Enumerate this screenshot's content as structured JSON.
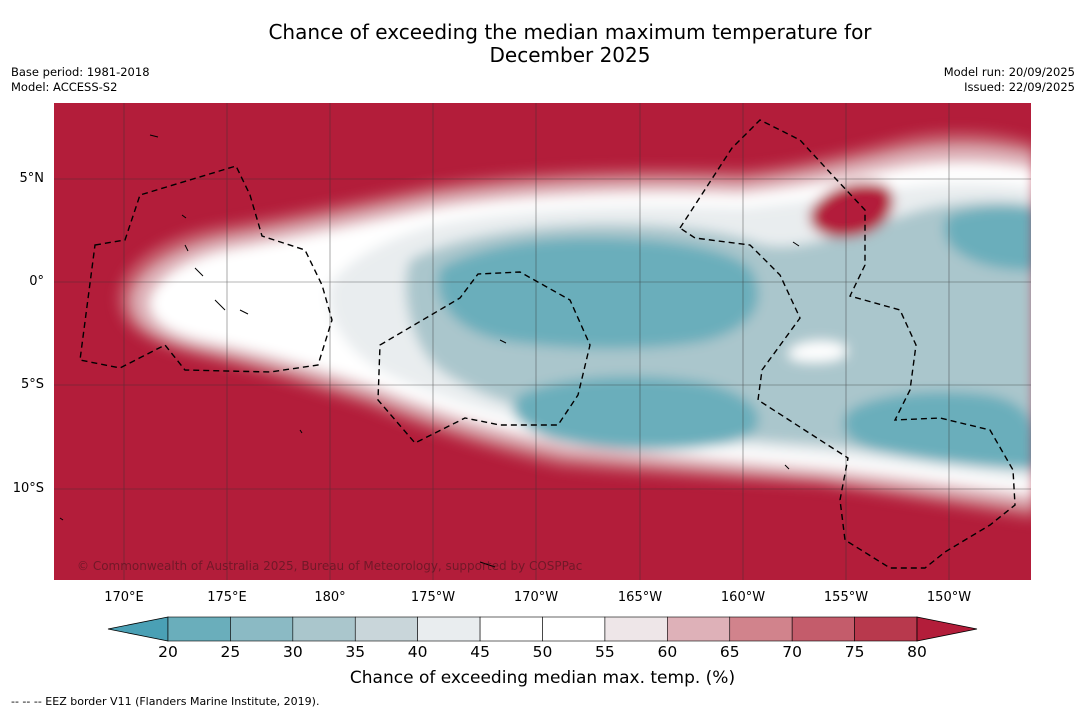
{
  "title": {
    "line1": "Chance of exceeding the median maximum temperature for",
    "line2": "December 2025"
  },
  "meta_left": {
    "base_period": "Base period: 1981-2018",
    "model": "Model: ACCESS-S2"
  },
  "meta_right": {
    "model_run": "Model run: 20/09/2025",
    "issued": "Issued: 22/09/2025"
  },
  "map": {
    "lat_labels": [
      "5°N",
      "0°",
      "5°S",
      "10°S"
    ],
    "lon_labels": [
      "170°E",
      "175°E",
      "180°",
      "175°W",
      "170°W",
      "165°W",
      "160°W",
      "155°W",
      "150°W"
    ],
    "copyright": "© Commonwealth of Australia 2025, Bureau of Meteorology, supported by COSPPac",
    "colors": {
      "ocean_hot": "#b31d3a",
      "grid": "#333333",
      "eez": "#000000"
    }
  },
  "colorbar": {
    "ticks": [
      "20",
      "25",
      "30",
      "35",
      "40",
      "45",
      "50",
      "55",
      "60",
      "65",
      "70",
      "75",
      "80"
    ],
    "colors": [
      "#4aa0b5",
      "#6aaebb",
      "#8bbac4",
      "#aac6cc",
      "#c9d6da",
      "#e9edef",
      "#ffffff",
      "#ffffff",
      "#eee6e8",
      "#deb1b8",
      "#d1838c",
      "#c45c6b",
      "#b8394d",
      "#b31d3a"
    ],
    "label": "Chance of exceeding median max. temp. (%)"
  },
  "footnote": "--  --  -- EEZ border V11 (Flanders Marine Institute, 2019)."
}
